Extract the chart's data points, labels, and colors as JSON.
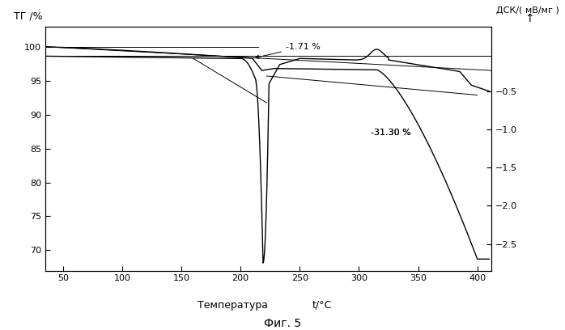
{
  "tg_ylabel": "ТГ /%",
  "dsc_ylabel": "ДСК/( мВ/мг )",
  "dsc_arrow": "↑",
  "xlabel": "Температура",
  "xlabel2": "t/°C",
  "caption": "Фиг. 5",
  "annotation1": "-1.71 %",
  "annotation2": "-31.30 %",
  "tg_ylim": [
    67,
    103
  ],
  "tg_yticks": [
    70,
    75,
    80,
    85,
    90,
    95,
    100
  ],
  "dsc_ylim": [
    -2.85,
    0.35
  ],
  "dsc_yticks": [
    -2.5,
    -2.0,
    -1.5,
    -1.0,
    -0.5
  ],
  "xlim": [
    35,
    412
  ],
  "xticks": [
    50,
    100,
    150,
    200,
    250,
    300,
    350,
    400
  ],
  "background_color": "#ffffff",
  "line_color": "#000000"
}
